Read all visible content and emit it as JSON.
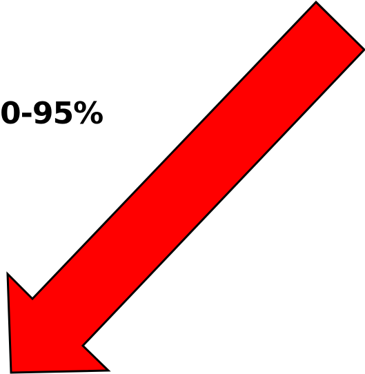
{
  "annotation": {
    "text": "0-95%"
  },
  "arrow": {
    "direction": "down-left",
    "fill_color": "#ff0000",
    "stroke_color": "#000000"
  }
}
